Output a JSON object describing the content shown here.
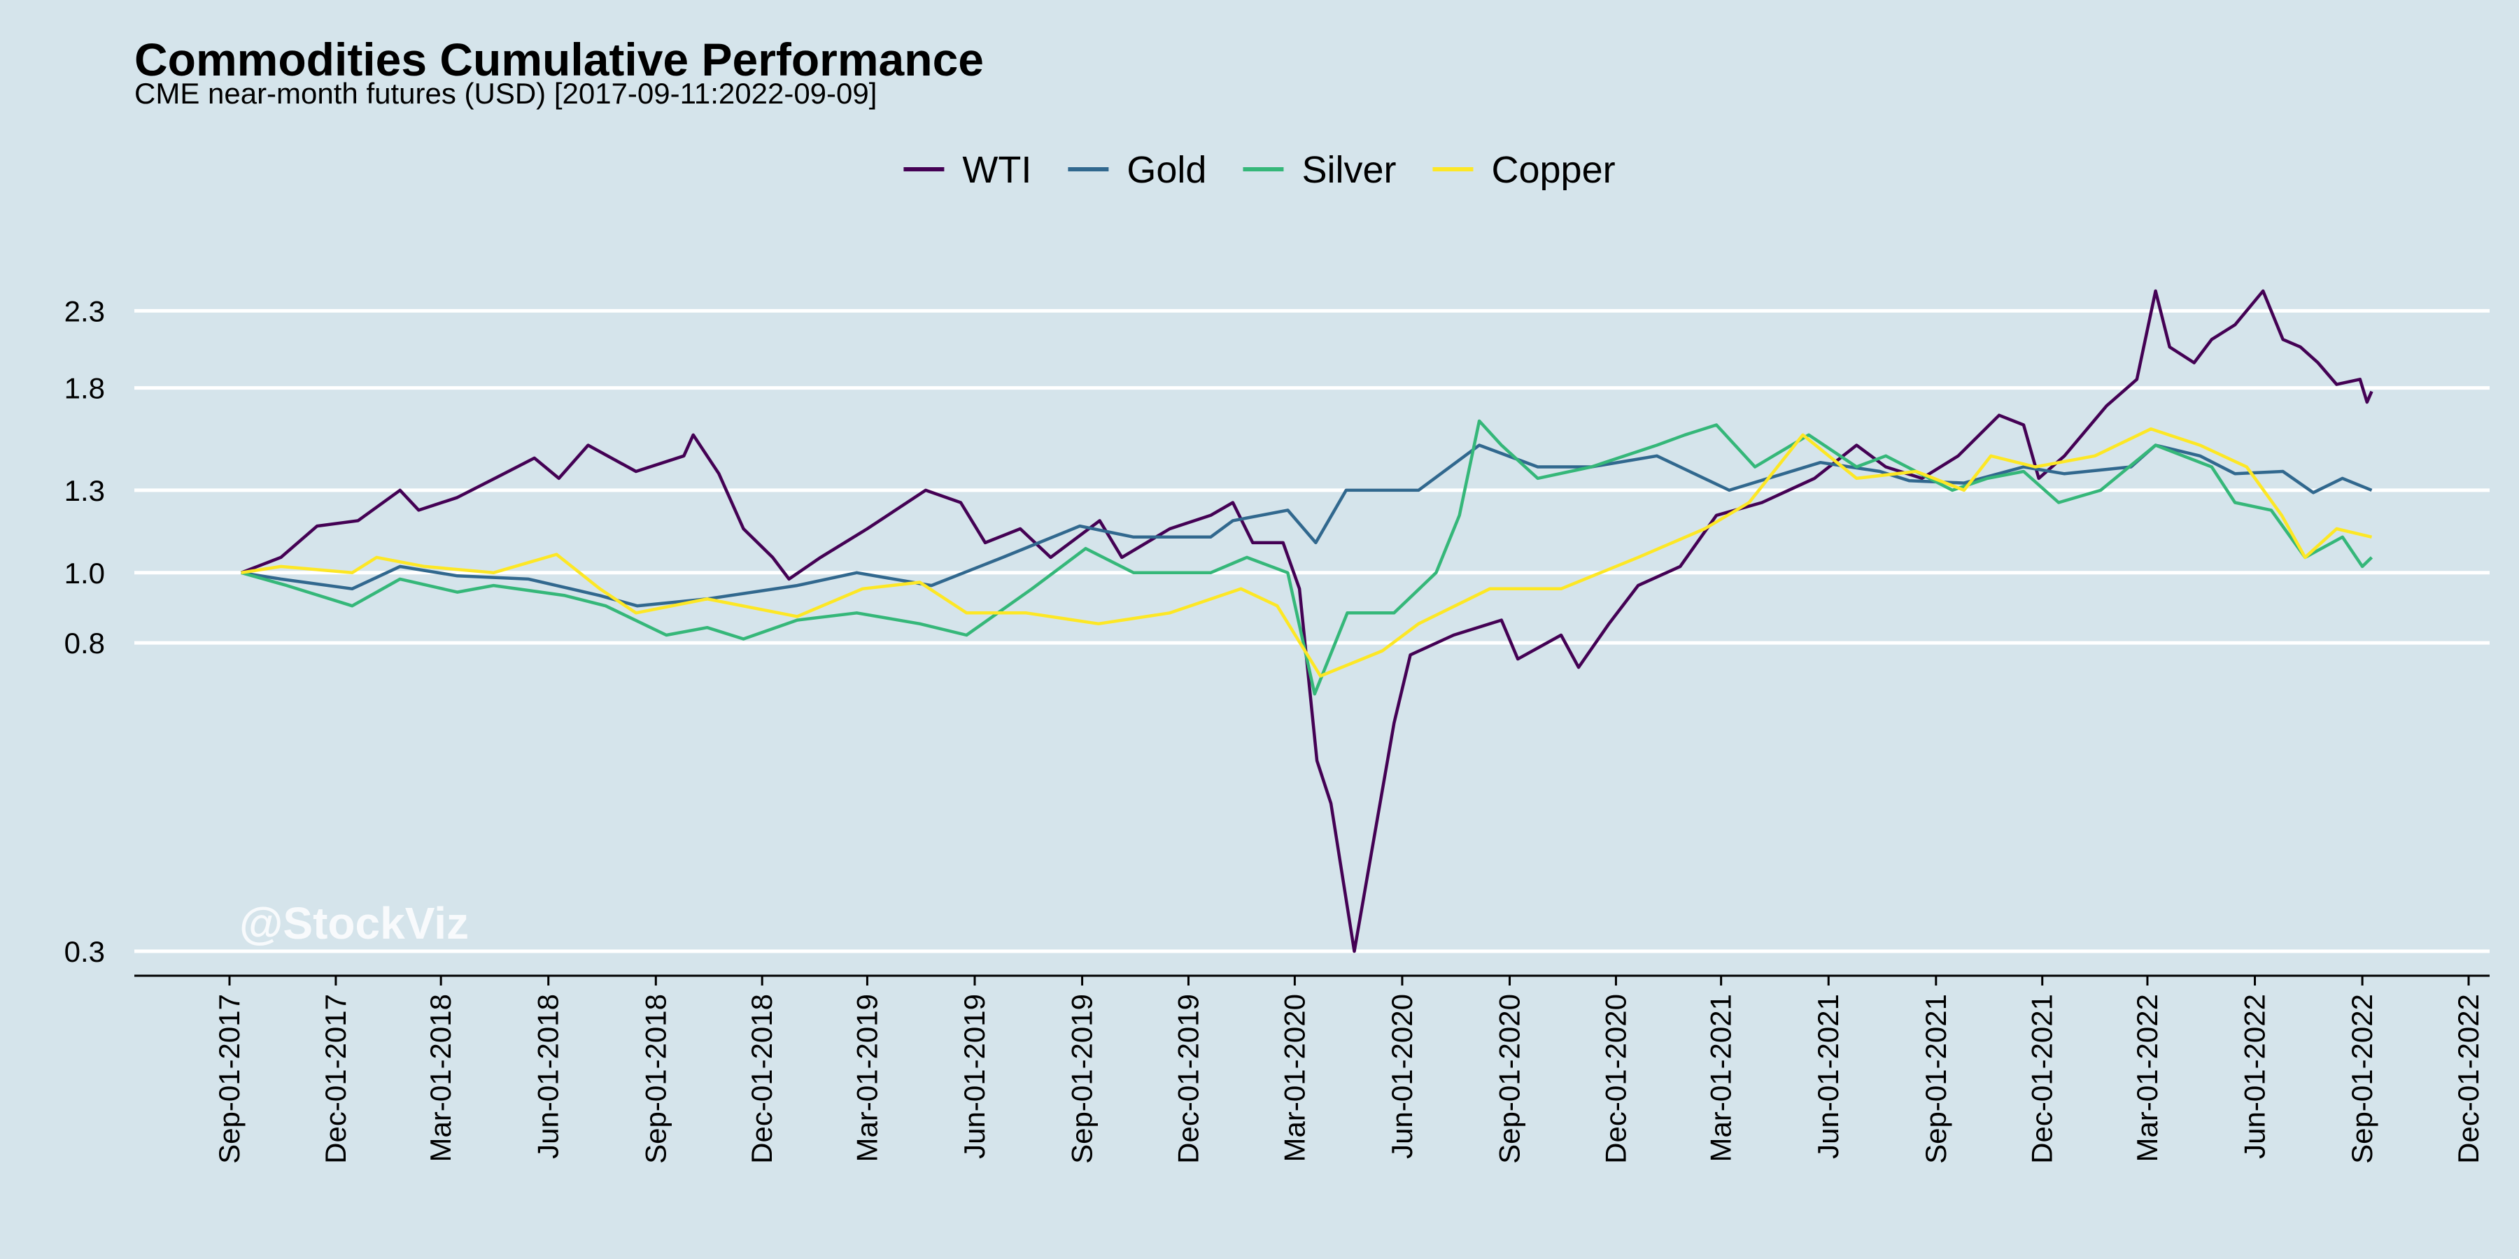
{
  "chart_data": {
    "type": "line",
    "title": "Commodities Cumulative Performance",
    "subtitle": "CME near-month futures (USD) [2017-09-11:2022-09-09]",
    "watermark": "@StockViz",
    "y_scale": "log",
    "ylim": [
      0.3,
      2.55
    ],
    "xlim": [
      "2017-09-01",
      "2022-12-01"
    ],
    "y_ticks": [
      0.3,
      0.8,
      1.0,
      1.3,
      1.8,
      2.3
    ],
    "y_tick_labels": [
      "0.3",
      "0.8",
      "1.0",
      "1.3",
      "1.8",
      "2.3"
    ],
    "x_ticks": [
      "2017-09-01",
      "2017-12-01",
      "2018-03-01",
      "2018-06-01",
      "2018-09-01",
      "2018-12-01",
      "2019-03-01",
      "2019-06-01",
      "2019-09-01",
      "2019-12-01",
      "2020-03-01",
      "2020-06-01",
      "2020-09-01",
      "2020-12-01",
      "2021-03-01",
      "2021-06-01",
      "2021-09-01",
      "2021-12-01",
      "2022-03-01",
      "2022-06-01",
      "2022-09-01",
      "2022-12-01"
    ],
    "x_tick_labels": [
      "Sep-01-2017",
      "Dec-01-2017",
      "Mar-01-2018",
      "Jun-01-2018",
      "Sep-01-2018",
      "Dec-01-2018",
      "Mar-01-2019",
      "Jun-01-2019",
      "Sep-01-2019",
      "Dec-01-2019",
      "Mar-01-2020",
      "Jun-01-2020",
      "Sep-01-2020",
      "Dec-01-2020",
      "Mar-01-2021",
      "Jun-01-2021",
      "Sep-01-2021",
      "Dec-01-2021",
      "Mar-01-2022",
      "Jun-01-2022",
      "Sep-01-2022",
      "Dec-01-2022"
    ],
    "grid": "horizontal",
    "legend_position": "top",
    "series": [
      {
        "name": "WTI",
        "color": "#440154",
        "points": [
          [
            "2017-09-11",
            1.0
          ],
          [
            "2017-10-15",
            1.05
          ],
          [
            "2017-11-15",
            1.16
          ],
          [
            "2017-12-20",
            1.18
          ],
          [
            "2018-01-25",
            1.3
          ],
          [
            "2018-02-10",
            1.22
          ],
          [
            "2018-03-15",
            1.27
          ],
          [
            "2018-04-20",
            1.36
          ],
          [
            "2018-05-20",
            1.44
          ],
          [
            "2018-06-10",
            1.35
          ],
          [
            "2018-07-05",
            1.5
          ],
          [
            "2018-08-15",
            1.38
          ],
          [
            "2018-09-25",
            1.45
          ],
          [
            "2018-10-03",
            1.55
          ],
          [
            "2018-10-25",
            1.37
          ],
          [
            "2018-11-15",
            1.15
          ],
          [
            "2018-12-10",
            1.05
          ],
          [
            "2018-12-24",
            0.98
          ],
          [
            "2019-01-20",
            1.05
          ],
          [
            "2019-03-01",
            1.15
          ],
          [
            "2019-04-20",
            1.3
          ],
          [
            "2019-05-20",
            1.25
          ],
          [
            "2019-06-10",
            1.1
          ],
          [
            "2019-07-10",
            1.15
          ],
          [
            "2019-08-05",
            1.05
          ],
          [
            "2019-09-16",
            1.18
          ],
          [
            "2019-10-05",
            1.05
          ],
          [
            "2019-11-15",
            1.15
          ],
          [
            "2019-12-20",
            1.2
          ],
          [
            "2020-01-08",
            1.25
          ],
          [
            "2020-01-25",
            1.1
          ],
          [
            "2020-02-20",
            1.1
          ],
          [
            "2020-03-05",
            0.95
          ],
          [
            "2020-03-20",
            0.55
          ],
          [
            "2020-04-01",
            0.48
          ],
          [
            "2020-04-21",
            0.3
          ],
          [
            "2020-05-10",
            0.45
          ],
          [
            "2020-05-25",
            0.62
          ],
          [
            "2020-06-08",
            0.77
          ],
          [
            "2020-07-15",
            0.82
          ],
          [
            "2020-08-25",
            0.86
          ],
          [
            "2020-09-08",
            0.76
          ],
          [
            "2020-10-15",
            0.82
          ],
          [
            "2020-10-30",
            0.74
          ],
          [
            "2020-11-25",
            0.85
          ],
          [
            "2020-12-20",
            0.96
          ],
          [
            "2021-01-25",
            1.02
          ],
          [
            "2021-02-25",
            1.2
          ],
          [
            "2021-04-05",
            1.25
          ],
          [
            "2021-05-20",
            1.35
          ],
          [
            "2021-06-25",
            1.5
          ],
          [
            "2021-07-20",
            1.4
          ],
          [
            "2021-08-20",
            1.35
          ],
          [
            "2021-09-20",
            1.45
          ],
          [
            "2021-10-25",
            1.65
          ],
          [
            "2021-11-15",
            1.6
          ],
          [
            "2021-11-28",
            1.35
          ],
          [
            "2021-12-20",
            1.45
          ],
          [
            "2022-01-25",
            1.7
          ],
          [
            "2022-02-20",
            1.85
          ],
          [
            "2022-03-08",
            2.45
          ],
          [
            "2022-03-20",
            2.05
          ],
          [
            "2022-04-10",
            1.95
          ],
          [
            "2022-04-25",
            2.1
          ],
          [
            "2022-05-15",
            2.2
          ],
          [
            "2022-06-08",
            2.45
          ],
          [
            "2022-06-25",
            2.1
          ],
          [
            "2022-07-10",
            2.05
          ],
          [
            "2022-07-25",
            1.95
          ],
          [
            "2022-08-10",
            1.82
          ],
          [
            "2022-08-30",
            1.85
          ],
          [
            "2022-09-05",
            1.72
          ],
          [
            "2022-09-09",
            1.78
          ]
        ]
      },
      {
        "name": "Gold",
        "color": "#31688e",
        "points": [
          [
            "2017-09-11",
            1.0
          ],
          [
            "2017-10-15",
            0.98
          ],
          [
            "2017-12-15",
            0.95
          ],
          [
            "2018-01-25",
            1.02
          ],
          [
            "2018-03-15",
            0.99
          ],
          [
            "2018-05-15",
            0.98
          ],
          [
            "2018-07-15",
            0.93
          ],
          [
            "2018-08-16",
            0.9
          ],
          [
            "2018-10-15",
            0.92
          ],
          [
            "2018-12-31",
            0.96
          ],
          [
            "2019-02-20",
            1.0
          ],
          [
            "2019-04-25",
            0.96
          ],
          [
            "2019-06-25",
            1.05
          ],
          [
            "2019-08-30",
            1.16
          ],
          [
            "2019-10-15",
            1.12
          ],
          [
            "2019-12-20",
            1.12
          ],
          [
            "2020-01-08",
            1.18
          ],
          [
            "2020-02-24",
            1.22
          ],
          [
            "2020-03-19",
            1.1
          ],
          [
            "2020-04-14",
            1.3
          ],
          [
            "2020-06-15",
            1.3
          ],
          [
            "2020-08-06",
            1.5
          ],
          [
            "2020-09-25",
            1.4
          ],
          [
            "2020-11-10",
            1.4
          ],
          [
            "2021-01-05",
            1.45
          ],
          [
            "2021-03-08",
            1.3
          ],
          [
            "2021-05-25",
            1.42
          ],
          [
            "2021-07-15",
            1.38
          ],
          [
            "2021-08-09",
            1.34
          ],
          [
            "2021-09-25",
            1.33
          ],
          [
            "2021-11-15",
            1.4
          ],
          [
            "2021-12-20",
            1.37
          ],
          [
            "2022-02-15",
            1.4
          ],
          [
            "2022-03-08",
            1.5
          ],
          [
            "2022-04-15",
            1.45
          ],
          [
            "2022-05-15",
            1.37
          ],
          [
            "2022-06-25",
            1.38
          ],
          [
            "2022-07-21",
            1.29
          ],
          [
            "2022-08-15",
            1.35
          ],
          [
            "2022-09-09",
            1.3
          ]
        ]
      },
      {
        "name": "Silver",
        "color": "#35b779",
        "points": [
          [
            "2017-09-11",
            1.0
          ],
          [
            "2017-10-20",
            0.96
          ],
          [
            "2017-12-15",
            0.9
          ],
          [
            "2018-01-25",
            0.98
          ],
          [
            "2018-03-15",
            0.94
          ],
          [
            "2018-04-15",
            0.96
          ],
          [
            "2018-06-15",
            0.93
          ],
          [
            "2018-07-20",
            0.9
          ],
          [
            "2018-09-10",
            0.82
          ],
          [
            "2018-10-15",
            0.84
          ],
          [
            "2018-11-15",
            0.81
          ],
          [
            "2018-12-31",
            0.86
          ],
          [
            "2019-02-20",
            0.88
          ],
          [
            "2019-04-15",
            0.85
          ],
          [
            "2019-05-25",
            0.82
          ],
          [
            "2019-07-20",
            0.95
          ],
          [
            "2019-09-04",
            1.08
          ],
          [
            "2019-10-15",
            1.0
          ],
          [
            "2019-12-20",
            1.0
          ],
          [
            "2020-01-20",
            1.05
          ],
          [
            "2020-02-24",
            1.0
          ],
          [
            "2020-03-18",
            0.68
          ],
          [
            "2020-04-15",
            0.88
          ],
          [
            "2020-05-25",
            0.88
          ],
          [
            "2020-06-30",
            1.0
          ],
          [
            "2020-07-20",
            1.2
          ],
          [
            "2020-08-06",
            1.62
          ],
          [
            "2020-08-25",
            1.5
          ],
          [
            "2020-09-25",
            1.35
          ],
          [
            "2020-11-10",
            1.4
          ],
          [
            "2021-01-05",
            1.5
          ],
          [
            "2021-01-29",
            1.55
          ],
          [
            "2021-02-25",
            1.6
          ],
          [
            "2021-03-30",
            1.4
          ],
          [
            "2021-05-15",
            1.55
          ],
          [
            "2021-06-25",
            1.4
          ],
          [
            "2021-07-20",
            1.45
          ],
          [
            "2021-09-15",
            1.3
          ],
          [
            "2021-10-15",
            1.35
          ],
          [
            "2021-11-15",
            1.38
          ],
          [
            "2021-12-15",
            1.25
          ],
          [
            "2022-01-20",
            1.3
          ],
          [
            "2022-03-08",
            1.5
          ],
          [
            "2022-04-25",
            1.4
          ],
          [
            "2022-05-15",
            1.25
          ],
          [
            "2022-06-15",
            1.22
          ],
          [
            "2022-07-14",
            1.05
          ],
          [
            "2022-08-15",
            1.12
          ],
          [
            "2022-09-01",
            1.02
          ],
          [
            "2022-09-09",
            1.05
          ]
        ]
      },
      {
        "name": "Copper",
        "color": "#fde725",
        "points": [
          [
            "2017-09-11",
            1.0
          ],
          [
            "2017-10-15",
            1.02
          ],
          [
            "2017-12-15",
            1.0
          ],
          [
            "2018-01-05",
            1.05
          ],
          [
            "2018-02-15",
            1.02
          ],
          [
            "2018-04-15",
            1.0
          ],
          [
            "2018-06-08",
            1.06
          ],
          [
            "2018-07-15",
            0.95
          ],
          [
            "2018-08-15",
            0.88
          ],
          [
            "2018-10-15",
            0.92
          ],
          [
            "2018-12-31",
            0.87
          ],
          [
            "2019-02-25",
            0.95
          ],
          [
            "2019-04-15",
            0.97
          ],
          [
            "2019-05-25",
            0.88
          ],
          [
            "2019-07-15",
            0.88
          ],
          [
            "2019-09-15",
            0.85
          ],
          [
            "2019-11-15",
            0.88
          ],
          [
            "2020-01-15",
            0.95
          ],
          [
            "2020-02-15",
            0.9
          ],
          [
            "2020-03-23",
            0.72
          ],
          [
            "2020-05-15",
            0.78
          ],
          [
            "2020-06-15",
            0.85
          ],
          [
            "2020-08-15",
            0.95
          ],
          [
            "2020-10-15",
            0.95
          ],
          [
            "2020-12-20",
            1.05
          ],
          [
            "2021-02-15",
            1.15
          ],
          [
            "2021-03-25",
            1.25
          ],
          [
            "2021-05-10",
            1.55
          ],
          [
            "2021-06-25",
            1.35
          ],
          [
            "2021-08-15",
            1.38
          ],
          [
            "2021-09-25",
            1.3
          ],
          [
            "2021-10-18",
            1.45
          ],
          [
            "2021-11-25",
            1.4
          ],
          [
            "2022-01-15",
            1.45
          ],
          [
            "2022-03-04",
            1.58
          ],
          [
            "2022-04-15",
            1.5
          ],
          [
            "2022-05-25",
            1.4
          ],
          [
            "2022-06-24",
            1.2
          ],
          [
            "2022-07-14",
            1.05
          ],
          [
            "2022-08-10",
            1.15
          ],
          [
            "2022-09-09",
            1.12
          ]
        ]
      }
    ]
  }
}
